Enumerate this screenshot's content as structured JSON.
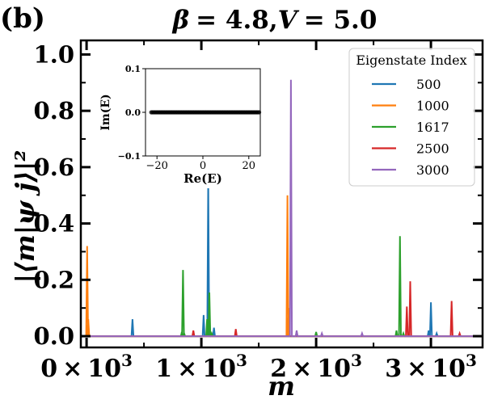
{
  "panel_label": "(b)",
  "chart_data": {
    "type": "line",
    "title": "β = 4.8,V = 5.0",
    "title_parts": {
      "beta": "β",
      "beta_value": "= 4.8,",
      "V": "V",
      "V_value": "= 5.0"
    },
    "xlabel": "m",
    "ylabel": "|⟨m|ψ j⟩|²",
    "xlim": [
      -50,
      3450
    ],
    "ylim": [
      -0.04,
      1.05
    ],
    "xticks": [
      0,
      1000,
      2000,
      3000
    ],
    "xtick_labels": [
      {
        "mant": "0",
        "times": "×",
        "base": "10",
        "exp": "3"
      },
      {
        "mant": "1",
        "times": "×",
        "base": "10",
        "exp": "3"
      },
      {
        "mant": "2",
        "times": "×",
        "base": "10",
        "exp": "3"
      },
      {
        "mant": "3",
        "times": "×",
        "base": "10",
        "exp": "3"
      }
    ],
    "yticks": [
      0.0,
      0.2,
      0.4,
      0.6,
      0.8,
      1.0
    ],
    "ytick_labels": [
      "0.0",
      "0.2",
      "0.4",
      "0.6",
      "0.8",
      "1.0"
    ],
    "legend": {
      "title": "Eigenstate Index",
      "position": "top-right",
      "entries": [
        {
          "label": "500",
          "color": "#1f77b4"
        },
        {
          "label": "1000",
          "color": "#ff7f0e"
        },
        {
          "label": "1617",
          "color": "#2ca02c"
        },
        {
          "label": "2500",
          "color": "#d62728"
        },
        {
          "label": "3000",
          "color": "#9467bd"
        }
      ]
    },
    "series": [
      {
        "name": "500",
        "color": "#1f77b4",
        "peaks": [
          [
            400,
            0.06
          ],
          [
            1020,
            0.075
          ],
          [
            1060,
            0.56
          ],
          [
            1110,
            0.03
          ],
          [
            2980,
            0.02
          ],
          [
            3000,
            0.12
          ],
          [
            3050,
            0.01
          ]
        ]
      },
      {
        "name": "1000",
        "color": "#ff7f0e",
        "peaks": [
          [
            5,
            0.32
          ],
          [
            15,
            0.06
          ],
          [
            1750,
            0.5
          ],
          [
            1760,
            0.1
          ]
        ]
      },
      {
        "name": "1617",
        "color": "#2ca02c",
        "peaks": [
          [
            830,
            0.015
          ],
          [
            840,
            0.235
          ],
          [
            850,
            0.01
          ],
          [
            1050,
            0.06
          ],
          [
            1070,
            0.155
          ],
          [
            1090,
            0.01
          ],
          [
            2000,
            0.015
          ],
          [
            2700,
            0.02
          ],
          [
            2730,
            0.355
          ],
          [
            2760,
            0.01
          ]
        ]
      },
      {
        "name": "2500",
        "color": "#d62728",
        "peaks": [
          [
            930,
            0.02
          ],
          [
            1300,
            0.025
          ],
          [
            2790,
            0.105
          ],
          [
            2820,
            0.195
          ],
          [
            3180,
            0.125
          ],
          [
            3250,
            0.01
          ]
        ]
      },
      {
        "name": "3000",
        "color": "#9467bd",
        "peaks": [
          [
            1780,
            0.91
          ],
          [
            1830,
            0.02
          ],
          [
            2050,
            0.01
          ],
          [
            2400,
            0.01
          ]
        ]
      }
    ],
    "inset": {
      "type": "scatter",
      "xlabel": "Re(E)",
      "ylabel": "Im(E)",
      "xlim": [
        -25,
        25
      ],
      "ylim": [
        -0.1,
        0.1
      ],
      "xticks": [
        -20,
        0,
        20
      ],
      "xtick_labels": [
        "−20",
        "0",
        "20"
      ],
      "yticks": [
        -0.1,
        0.0,
        0.1
      ],
      "ytick_labels": [
        "−0.1",
        "0.0",
        "0.1"
      ],
      "points_re_range": [
        -22.5,
        24.5
      ],
      "points_im": 0.0,
      "point_color": "#000000"
    }
  }
}
